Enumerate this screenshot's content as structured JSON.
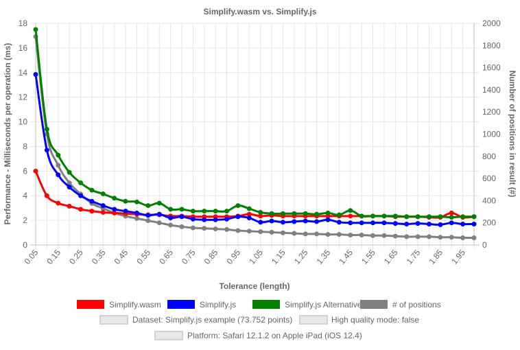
{
  "chart_data": {
    "type": "line",
    "title": "Simplify.wasm vs. Simplify.js",
    "xlabel": "Tolerance (length)",
    "ylabel_left": "Performance - Milliseconds per operation (ms)",
    "ylabel_right": "Number of positions in result (#)",
    "x_ticks": [
      "0.05",
      "0.15",
      "0.25",
      "0.35",
      "0.45",
      "0.55",
      "0.65",
      "0.75",
      "0.85",
      "0.95",
      "1.05",
      "1.15",
      "1.25",
      "1.35",
      "1.45",
      "1.55",
      "1.65",
      "1.75",
      "1.85",
      "1.95"
    ],
    "x": [
      0.05,
      0.1,
      0.15,
      0.2,
      0.25,
      0.3,
      0.35,
      0.4,
      0.45,
      0.5,
      0.55,
      0.6,
      0.65,
      0.7,
      0.75,
      0.8,
      0.85,
      0.9,
      0.95,
      1.0,
      1.05,
      1.1,
      1.15,
      1.2,
      1.25,
      1.3,
      1.35,
      1.4,
      1.45,
      1.5,
      1.55,
      1.6,
      1.65,
      1.7,
      1.75,
      1.8,
      1.85,
      1.9,
      1.95,
      2.0
    ],
    "xlim": [
      0.05,
      2.0
    ],
    "ylim_left": [
      0,
      18
    ],
    "y_ticks_left": [
      0,
      2,
      4,
      6,
      8,
      10,
      12,
      14,
      16,
      18
    ],
    "ylim_right": [
      0,
      2000
    ],
    "y_ticks_right": [
      0,
      200,
      400,
      600,
      800,
      1000,
      1200,
      1400,
      1600,
      1800,
      2000
    ],
    "grid": true,
    "legend_placement": "bottom",
    "series": [
      {
        "name": "Simplify.wasm",
        "color": "#ff0000",
        "axis": "left",
        "values": [
          6.0,
          4.0,
          3.4,
          3.15,
          2.9,
          2.75,
          2.65,
          2.6,
          2.55,
          2.5,
          2.45,
          2.45,
          2.35,
          2.35,
          2.3,
          2.3,
          2.3,
          2.3,
          2.35,
          2.5,
          2.35,
          2.4,
          2.35,
          2.35,
          2.35,
          2.35,
          2.35,
          2.35,
          2.35,
          2.35,
          2.35,
          2.35,
          2.3,
          2.3,
          2.3,
          2.25,
          2.25,
          2.6,
          2.25,
          2.3
        ]
      },
      {
        "name": "Simplify.js",
        "color": "#0000ff",
        "axis": "left",
        "values": [
          13.85,
          7.7,
          5.7,
          4.7,
          4.0,
          3.55,
          3.2,
          2.9,
          2.75,
          2.6,
          2.4,
          2.5,
          2.2,
          2.3,
          2.1,
          2.05,
          2.05,
          2.1,
          2.3,
          2.2,
          1.85,
          1.95,
          1.85,
          1.9,
          1.95,
          1.9,
          2.05,
          1.85,
          1.8,
          1.8,
          1.8,
          1.8,
          1.75,
          1.7,
          1.75,
          1.7,
          1.65,
          1.8,
          1.7,
          1.7
        ]
      },
      {
        "name": "Simplify.js Alternative",
        "color": "#008000",
        "axis": "left",
        "values": [
          17.5,
          9.4,
          7.3,
          5.9,
          5.05,
          4.45,
          4.15,
          3.8,
          3.55,
          3.5,
          3.2,
          3.4,
          2.9,
          2.9,
          2.75,
          2.75,
          2.75,
          2.75,
          3.2,
          2.95,
          2.65,
          2.55,
          2.55,
          2.55,
          2.55,
          2.5,
          2.6,
          2.45,
          2.8,
          2.35,
          2.35,
          2.35,
          2.35,
          2.3,
          2.3,
          2.3,
          2.3,
          2.25,
          2.3,
          2.3
        ]
      },
      {
        "name": "# of positions",
        "color": "#808080",
        "axis": "right",
        "values": [
          1880,
          1000,
          720,
          560,
          460,
          375,
          330,
          290,
          260,
          240,
          220,
          200,
          180,
          165,
          155,
          150,
          145,
          140,
          130,
          125,
          120,
          115,
          110,
          105,
          100,
          100,
          95,
          95,
          90,
          90,
          85,
          85,
          80,
          75,
          75,
          75,
          70,
          70,
          65,
          65
        ]
      }
    ],
    "legend_info": [
      "Dataset: Simplify.js example (73.752 points)",
      "High quality mode: false",
      "Platform: Safari 12.1.2 on Apple iPad (iOS 12.4)"
    ]
  }
}
